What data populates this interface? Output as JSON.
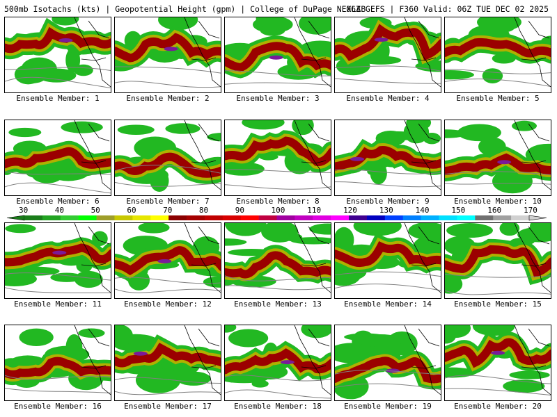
{
  "header": {
    "left": "500mb Isotachs (kts) | Geopotential Height (gpm) | College of DuPage NEXLAB",
    "right": "06Z GEFS | F360 Valid: 06Z TUE DEC 02 2025"
  },
  "panels": [
    {
      "caption": "Ensemble Member: 1"
    },
    {
      "caption": "Ensemble Member: 2"
    },
    {
      "caption": "Ensemble Member: 3"
    },
    {
      "caption": "Ensemble Member: 4"
    },
    {
      "caption": "Ensemble Member: 5"
    },
    {
      "caption": "Ensemble Member: 6"
    },
    {
      "caption": "Ensemble Member: 7"
    },
    {
      "caption": "Ensemble Member: 8"
    },
    {
      "caption": "Ensemble Member: 9"
    },
    {
      "caption": "Ensemble Member: 10"
    },
    {
      "caption": "Ensemble Member: 11"
    },
    {
      "caption": "Ensemble Member: 12"
    },
    {
      "caption": "Ensemble Member: 13"
    },
    {
      "caption": "Ensemble Member: 14"
    },
    {
      "caption": "Ensemble Member: 15"
    },
    {
      "caption": "Ensemble Member: 16"
    },
    {
      "caption": "Ensemble Member: 17"
    },
    {
      "caption": "Ensemble Member: 18"
    },
    {
      "caption": "Ensemble Member: 19"
    },
    {
      "caption": "Ensemble Member: 20"
    }
  ],
  "colorbar": {
    "labels": [
      "30",
      "40",
      "50",
      "60",
      "70",
      "80",
      "90",
      "100",
      "110",
      "120",
      "130",
      "140",
      "150",
      "160",
      "170"
    ],
    "colors": [
      "#1a7d1a",
      "#22a322",
      "#33cc33",
      "#00ff00",
      "#9e9e2a",
      "#c8c800",
      "#e6e600",
      "#ffff00",
      "#8b0000",
      "#a50000",
      "#c00000",
      "#d80000",
      "#ff0000",
      "#c00040",
      "#a000a0",
      "#c000c0",
      "#e000e0",
      "#ff00ff",
      "#400090",
      "#0000c0",
      "#0040ff",
      "#0080ff",
      "#00b0ff",
      "#00e0ff",
      "#00ffff",
      "#707070",
      "#a0a0a0",
      "#d0d0d0"
    ]
  },
  "colors": {
    "wind_light": "#22b822",
    "wind_mid": "#b0b000",
    "wind_strong": "#9b0000",
    "wind_jet": "#7a1a9a",
    "height_contour": "#808080",
    "coastline": "#000000"
  }
}
